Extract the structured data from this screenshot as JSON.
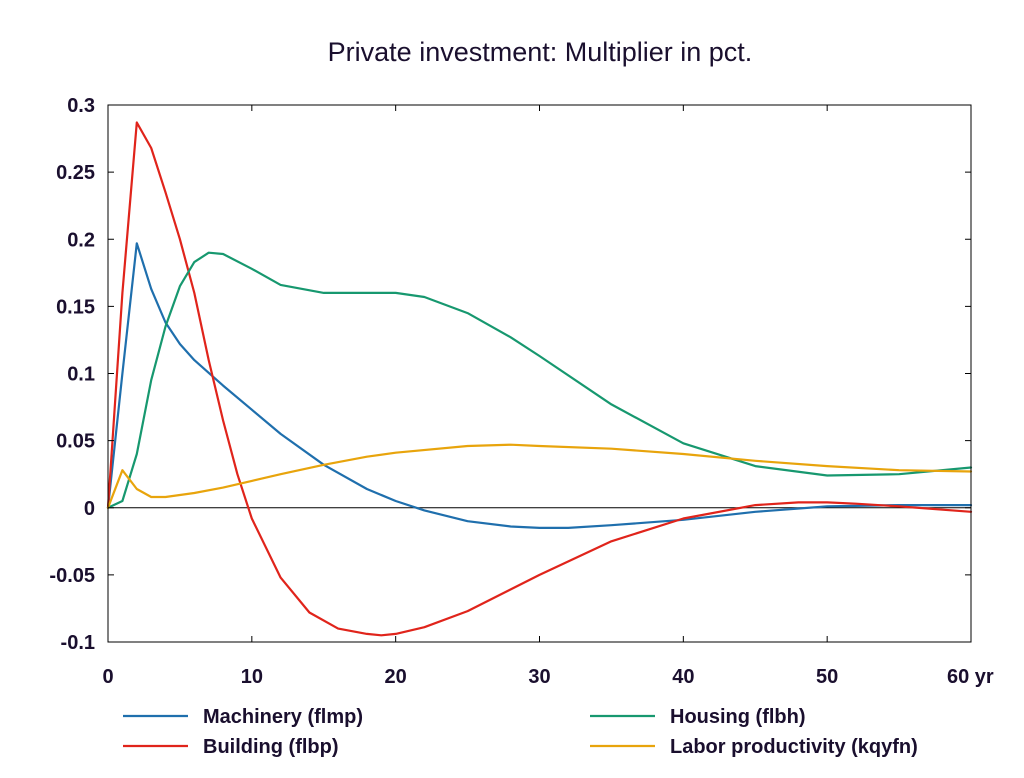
{
  "chart_data": {
    "type": "line",
    "title": "Private investment: Multiplier in pct.",
    "xlabel": "",
    "ylabel": "",
    "xlim": [
      0,
      60
    ],
    "ylim": [
      -0.1,
      0.3
    ],
    "x_ticks": [
      "0",
      "10",
      "20",
      "30",
      "40",
      "50",
      "60 yr"
    ],
    "x_tick_values": [
      0,
      10,
      20,
      30,
      40,
      50,
      60
    ],
    "y_ticks": [
      "0.3",
      "0.25",
      "0.2",
      "0.15",
      "0.1",
      "0.05",
      "0",
      "-0.05",
      "-0.1"
    ],
    "y_tick_values": [
      0.3,
      0.25,
      0.2,
      0.15,
      0.1,
      0.05,
      0,
      -0.05,
      -0.1
    ],
    "grid": false,
    "legend_position": "bottom",
    "series": [
      {
        "name": "Machinery (flmp)",
        "color": "#1f6fad",
        "x": [
          0,
          1,
          2,
          3,
          4,
          5,
          6,
          8,
          10,
          12,
          15,
          18,
          20,
          22,
          25,
          28,
          30,
          32,
          35,
          40,
          45,
          50,
          55,
          60
        ],
        "y": [
          0,
          0.1,
          0.197,
          0.163,
          0.138,
          0.122,
          0.11,
          0.091,
          0.073,
          0.055,
          0.032,
          0.014,
          0.005,
          -0.002,
          -0.01,
          -0.014,
          -0.015,
          -0.015,
          -0.013,
          -0.009,
          -0.003,
          0.001,
          0.002,
          0.002
        ]
      },
      {
        "name": "Building (flbp)",
        "color": "#e0241b",
        "x": [
          0,
          1,
          2,
          3,
          4,
          5,
          6,
          7,
          8,
          9,
          10,
          12,
          14,
          16,
          18,
          19,
          20,
          22,
          25,
          30,
          35,
          40,
          45,
          48,
          50,
          52,
          55,
          60
        ],
        "y": [
          0,
          0.16,
          0.287,
          0.268,
          0.235,
          0.2,
          0.16,
          0.11,
          0.065,
          0.025,
          -0.008,
          -0.052,
          -0.078,
          -0.09,
          -0.094,
          -0.095,
          -0.094,
          -0.089,
          -0.077,
          -0.05,
          -0.025,
          -0.008,
          0.002,
          0.004,
          0.004,
          0.003,
          0.001,
          -0.003
        ]
      },
      {
        "name": "Housing (flbh)",
        "color": "#17986f",
        "x": [
          0,
          1,
          2,
          3,
          4,
          5,
          6,
          7,
          8,
          10,
          12,
          15,
          18,
          20,
          22,
          25,
          28,
          30,
          35,
          40,
          45,
          50,
          55,
          60
        ],
        "y": [
          0,
          0.005,
          0.04,
          0.095,
          0.135,
          0.165,
          0.183,
          0.19,
          0.189,
          0.178,
          0.166,
          0.16,
          0.16,
          0.16,
          0.157,
          0.145,
          0.127,
          0.113,
          0.077,
          0.048,
          0.031,
          0.024,
          0.025,
          0.03
        ]
      },
      {
        "name": "Labor productivity (kqyfn)",
        "color": "#e8a40c",
        "x": [
          0,
          1,
          2,
          3,
          4,
          6,
          8,
          10,
          12,
          15,
          18,
          20,
          25,
          28,
          30,
          35,
          40,
          45,
          50,
          55,
          60
        ],
        "y": [
          0,
          0.028,
          0.014,
          0.008,
          0.008,
          0.011,
          0.015,
          0.02,
          0.025,
          0.032,
          0.038,
          0.041,
          0.046,
          0.047,
          0.046,
          0.044,
          0.04,
          0.035,
          0.031,
          0.028,
          0.027
        ]
      }
    ]
  }
}
